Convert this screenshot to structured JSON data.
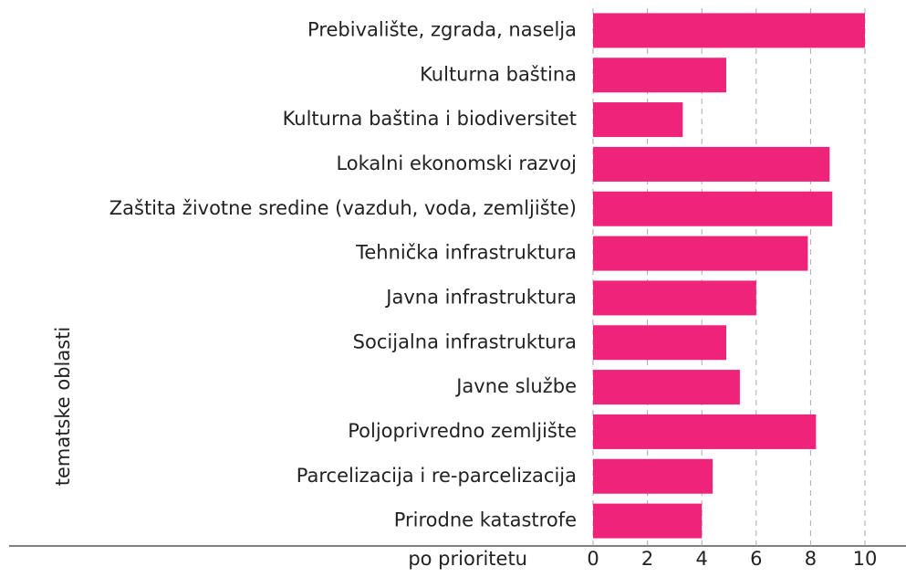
{
  "chart_data": {
    "type": "barh",
    "ylabel": "tematske oblasti",
    "xlabel": "po prioritetu",
    "categories": [
      "Prebivalište, zgrada, naselja",
      "Kulturna baština",
      "Kulturna baština i biodiversitet",
      "Lokalni ekonomski razvoj",
      "Zaštita životne sredine (vazduh, voda, zemljište)",
      "Tehnička infrastruktura",
      "Javna infrastruktura",
      "Socijalna infrastruktura",
      "Javne službe",
      "Poljoprivredno zemljište",
      "Parcelizacija i re-parcelizacija",
      "Prirodne katastrofe"
    ],
    "values": [
      10,
      4.9,
      3.3,
      8.7,
      8.8,
      7.9,
      6.0,
      4.9,
      5.4,
      8.2,
      4.4,
      4.0
    ],
    "color": "#f0237b",
    "xlim": [
      0,
      10
    ],
    "xticks": [
      0,
      2,
      4,
      6,
      8,
      10
    ],
    "grid": true
  }
}
